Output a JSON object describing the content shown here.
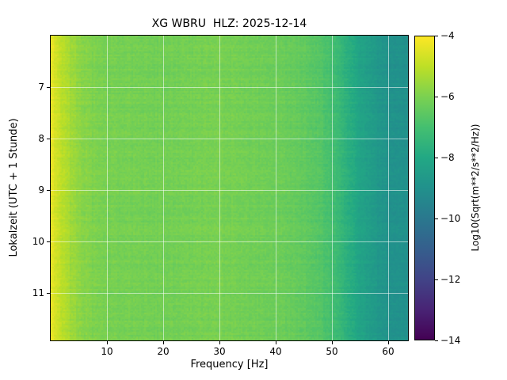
{
  "figure": {
    "background": "#ffffff"
  },
  "chart_data": {
    "type": "heatmap",
    "title": "XG WBRU  HLZ: 2025-12-14",
    "xlabel": "Frequency [Hz]",
    "ylabel": "Lokalzeit (UTC + 1 Stunde)",
    "colorbar_label": "Log10(Sqrt(m**2/s**2/Hz))",
    "x_axis": {
      "min": 0,
      "max": 63.5,
      "ticks": [
        10,
        20,
        30,
        40,
        50,
        60
      ]
    },
    "y_axis": {
      "top_hour": 6.0,
      "bottom_hour": 11.92,
      "ticks": [
        7,
        8,
        9,
        10,
        11
      ]
    },
    "colorbar": {
      "min": -14,
      "max": -4,
      "ticks": [
        -4,
        -6,
        -8,
        -10,
        -12,
        -14
      ]
    },
    "colormap": {
      "name": "viridis",
      "stops": [
        [
          0.0,
          "#440154"
        ],
        [
          0.1,
          "#482475"
        ],
        [
          0.2,
          "#414487"
        ],
        [
          0.3,
          "#355f8d"
        ],
        [
          0.4,
          "#2a788e"
        ],
        [
          0.5,
          "#21918c"
        ],
        [
          0.6,
          "#22a884"
        ],
        [
          0.7,
          "#44bf70"
        ],
        [
          0.8,
          "#7ad151"
        ],
        [
          0.9,
          "#bddf26"
        ],
        [
          1.0,
          "#fde725"
        ]
      ]
    },
    "grid": {
      "show": true,
      "color": "#ffffff",
      "opacity": 0.55
    },
    "spectral_profile": {
      "frequencies_hz": [
        0,
        0.5,
        1,
        1.5,
        2,
        3,
        4,
        5,
        6,
        8,
        10,
        15,
        20,
        25,
        30,
        35,
        40,
        43,
        46,
        48,
        50,
        52,
        55,
        58,
        60,
        63.5
      ],
      "log10_amplitude": [
        -4.35,
        -4.5,
        -4.65,
        -4.8,
        -5.0,
        -5.3,
        -5.5,
        -5.65,
        -5.8,
        -6.0,
        -6.05,
        -6.1,
        -6.15,
        -6.1,
        -6.05,
        -6.15,
        -6.25,
        -6.35,
        -6.5,
        -6.7,
        -7.0,
        -7.5,
        -8.2,
        -8.7,
        -8.9,
        -9.0
      ]
    },
    "texture_noise": {
      "cell": 0.16,
      "row": 0.1,
      "column": 0.06,
      "low_freq_column_boost": 2
    }
  }
}
